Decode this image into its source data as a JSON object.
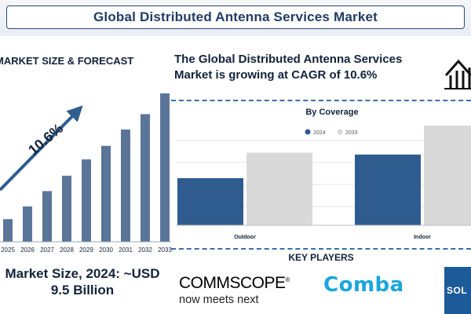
{
  "header": {
    "title": "Global Distributed Antenna Services Market"
  },
  "left_panel": {
    "heading": "MARKET SIZE & FORECAST",
    "cagr_label": "10.6%",
    "market_size_line1": "Market Size, 2024: ~USD",
    "market_size_line2": "9.5 Billion"
  },
  "right_panel": {
    "heading_line1": "The Global Distributed Antenna Services",
    "heading_line2": "Market is growing at CAGR of 10.6%"
  },
  "key_players": {
    "title": "KEY PLAYERS",
    "commscope_name": "COMMSCOPE",
    "commscope_mark": "®",
    "commscope_tagline": "now meets next",
    "comba": "Comba",
    "third": "SOL"
  },
  "colors": {
    "bar_dark": "#2f5c8f",
    "bar_light": "#d9d9d9",
    "forecast_bar": "#5a7598",
    "arrow": "#2e5d8e"
  },
  "chart_data": [
    {
      "type": "bar",
      "title": "Market Size & Forecast",
      "categories": [
        "2025",
        "2026",
        "2027",
        "2028",
        "2029",
        "2030",
        "2031",
        "2032",
        "2033"
      ],
      "values": [
        2.5,
        3.9,
        5.6,
        7.3,
        9.1,
        10.6,
        12.4,
        14.1,
        16.4
      ],
      "ylim": [
        0,
        17
      ],
      "annotation": "10.6%"
    },
    {
      "type": "bar",
      "title": "By Coverage",
      "categories": [
        "Outdoor",
        "Indoor"
      ],
      "series": [
        {
          "name": "2024",
          "values": [
            26,
            39
          ]
        },
        {
          "name": "2033",
          "values": [
            40,
            55
          ]
        }
      ],
      "ylim": [
        0,
        58
      ]
    }
  ]
}
